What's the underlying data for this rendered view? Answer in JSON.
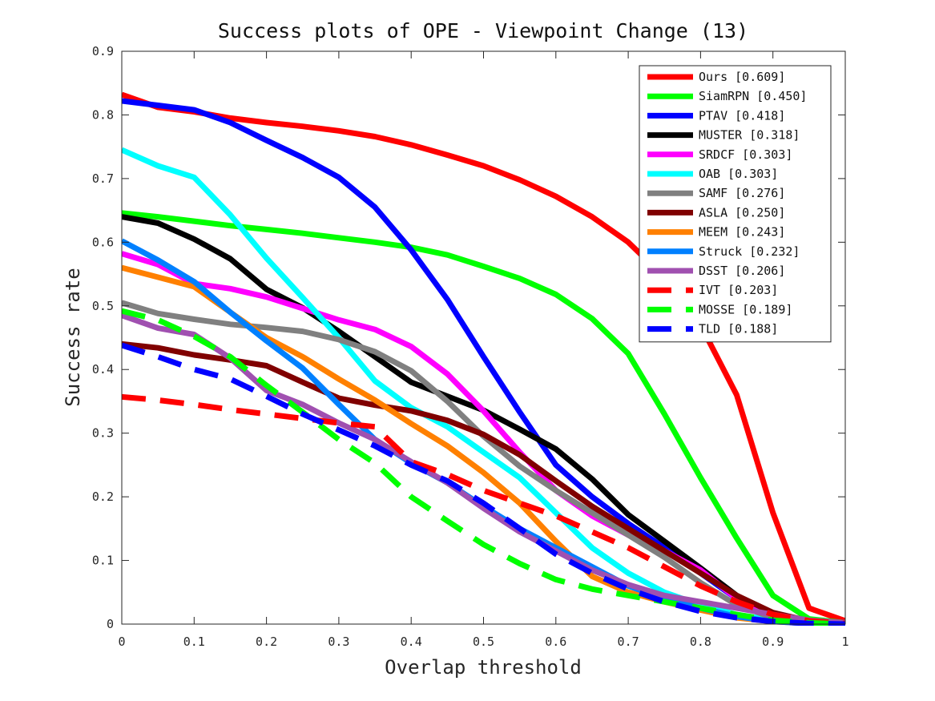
{
  "chart_data": {
    "type": "line",
    "title": "Success plots of OPE - Viewpoint Change (13)",
    "xlabel": "Overlap threshold",
    "ylabel": "Success rate",
    "xlim": [
      0,
      1
    ],
    "ylim": [
      0,
      0.9
    ],
    "xticks": [
      "0",
      "0.1",
      "0.2",
      "0.3",
      "0.4",
      "0.5",
      "0.6",
      "0.7",
      "0.8",
      "0.9",
      "1"
    ],
    "yticks": [
      "0",
      "0.1",
      "0.2",
      "0.3",
      "0.4",
      "0.5",
      "0.6",
      "0.7",
      "0.8",
      "0.9"
    ],
    "legend_position": "top-right",
    "grid": false,
    "x": [
      0,
      0.05,
      0.1,
      0.15,
      0.2,
      0.25,
      0.3,
      0.35,
      0.4,
      0.45,
      0.5,
      0.55,
      0.6,
      0.65,
      0.7,
      0.75,
      0.8,
      0.85,
      0.9,
      0.95,
      1.0
    ],
    "series": [
      {
        "name": "Ours [0.609]",
        "color": "#ff0000",
        "dashed": false,
        "values": [
          0.832,
          0.812,
          0.805,
          0.795,
          0.788,
          0.782,
          0.775,
          0.766,
          0.753,
          0.737,
          0.72,
          0.698,
          0.672,
          0.64,
          0.6,
          0.545,
          0.47,
          0.36,
          0.175,
          0.025,
          0.005
        ]
      },
      {
        "name": "SiamRPN [0.450]",
        "color": "#00ff00",
        "dashed": false,
        "values": [
          0.646,
          0.64,
          0.633,
          0.626,
          0.62,
          0.614,
          0.607,
          0.6,
          0.592,
          0.58,
          0.562,
          0.543,
          0.518,
          0.48,
          0.425,
          0.33,
          0.23,
          0.135,
          0.045,
          0.008,
          0.002
        ]
      },
      {
        "name": "PTAV [0.418]",
        "color": "#0000ff",
        "dashed": false,
        "values": [
          0.822,
          0.815,
          0.808,
          0.788,
          0.76,
          0.733,
          0.702,
          0.655,
          0.588,
          0.51,
          0.42,
          0.333,
          0.25,
          0.2,
          0.158,
          0.12,
          0.08,
          0.04,
          0.015,
          0.005,
          0.002
        ]
      },
      {
        "name": "MUSTER [0.318]",
        "color": "#000000",
        "dashed": false,
        "values": [
          0.64,
          0.63,
          0.605,
          0.574,
          0.526,
          0.497,
          0.46,
          0.42,
          0.38,
          0.358,
          0.336,
          0.306,
          0.275,
          0.228,
          0.172,
          0.13,
          0.088,
          0.045,
          0.015,
          0.004,
          0.001
        ]
      },
      {
        "name": "SRDCF [0.303]",
        "color": "#ff00ff",
        "dashed": false,
        "values": [
          0.582,
          0.565,
          0.535,
          0.527,
          0.514,
          0.496,
          0.478,
          0.463,
          0.436,
          0.393,
          0.335,
          0.27,
          0.21,
          0.17,
          0.14,
          0.115,
          0.085,
          0.04,
          0.012,
          0.003,
          0.001
        ]
      },
      {
        "name": "OAB [0.303]",
        "color": "#00ffff",
        "dashed": false,
        "values": [
          0.745,
          0.72,
          0.702,
          0.643,
          0.575,
          0.513,
          0.45,
          0.382,
          0.34,
          0.31,
          0.27,
          0.23,
          0.175,
          0.12,
          0.08,
          0.05,
          0.03,
          0.015,
          0.006,
          0.002,
          0.001
        ]
      },
      {
        "name": "SAMF [0.276]",
        "color": "#808080",
        "dashed": false,
        "values": [
          0.505,
          0.488,
          0.479,
          0.471,
          0.466,
          0.46,
          0.447,
          0.428,
          0.398,
          0.35,
          0.295,
          0.248,
          0.21,
          0.175,
          0.14,
          0.105,
          0.065,
          0.03,
          0.01,
          0.003,
          0.001
        ]
      },
      {
        "name": "ASLA [0.250]",
        "color": "#800000",
        "dashed": false,
        "values": [
          0.44,
          0.434,
          0.423,
          0.415,
          0.406,
          0.38,
          0.355,
          0.344,
          0.335,
          0.32,
          0.298,
          0.266,
          0.225,
          0.185,
          0.15,
          0.115,
          0.08,
          0.045,
          0.018,
          0.005,
          0.001
        ]
      },
      {
        "name": "MEEM [0.243]",
        "color": "#ff8000",
        "dashed": false,
        "values": [
          0.56,
          0.545,
          0.53,
          0.49,
          0.45,
          0.42,
          0.385,
          0.352,
          0.315,
          0.28,
          0.238,
          0.19,
          0.13,
          0.075,
          0.05,
          0.035,
          0.022,
          0.01,
          0.004,
          0.001,
          0.0
        ]
      },
      {
        "name": "Struck [0.232]",
        "color": "#0080ff",
        "dashed": false,
        "values": [
          0.602,
          0.572,
          0.538,
          0.49,
          0.445,
          0.402,
          0.345,
          0.29,
          0.253,
          0.222,
          0.185,
          0.15,
          0.12,
          0.09,
          0.06,
          0.04,
          0.025,
          0.012,
          0.004,
          0.001,
          0.0
        ]
      },
      {
        "name": "DSST [0.206]",
        "color": "#a050b0",
        "dashed": false,
        "values": [
          0.485,
          0.465,
          0.455,
          0.418,
          0.367,
          0.345,
          0.316,
          0.29,
          0.255,
          0.222,
          0.182,
          0.145,
          0.115,
          0.085,
          0.062,
          0.045,
          0.035,
          0.025,
          0.015,
          0.006,
          0.002
        ]
      },
      {
        "name": "IVT [0.203]",
        "color": "#ff0000",
        "dashed": true,
        "values": [
          0.357,
          0.352,
          0.345,
          0.337,
          0.33,
          0.323,
          0.316,
          0.31,
          0.255,
          0.235,
          0.21,
          0.19,
          0.17,
          0.145,
          0.12,
          0.09,
          0.06,
          0.035,
          0.015,
          0.005,
          0.001
        ]
      },
      {
        "name": "MOSSE [0.189]",
        "color": "#00ff00",
        "dashed": true,
        "values": [
          0.492,
          0.478,
          0.452,
          0.42,
          0.375,
          0.333,
          0.29,
          0.253,
          0.2,
          0.162,
          0.125,
          0.095,
          0.07,
          0.055,
          0.045,
          0.035,
          0.025,
          0.015,
          0.006,
          0.002,
          0.0
        ]
      },
      {
        "name": "TLD [0.188]",
        "color": "#0000ff",
        "dashed": true,
        "values": [
          0.438,
          0.42,
          0.4,
          0.385,
          0.358,
          0.33,
          0.305,
          0.28,
          0.25,
          0.225,
          0.19,
          0.15,
          0.11,
          0.08,
          0.055,
          0.035,
          0.02,
          0.01,
          0.004,
          0.001,
          0.0
        ]
      }
    ]
  }
}
